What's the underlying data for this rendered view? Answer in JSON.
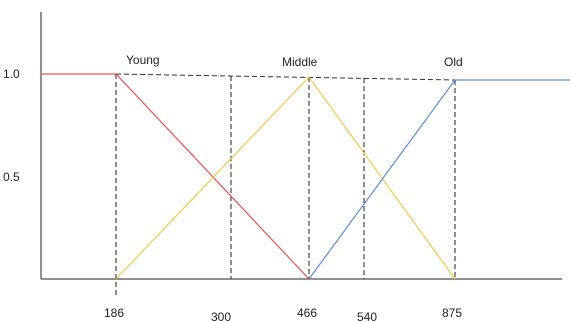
{
  "chart_data": {
    "type": "line",
    "y_ticks": [
      "1.0",
      "0.5"
    ],
    "x_ticks": [
      "186",
      "300",
      "466",
      "540",
      "875"
    ],
    "series": [
      {
        "name": "Young",
        "color": "#f05050",
        "points": [
          [
            0,
            1.0
          ],
          [
            186,
            1.0
          ],
          [
            466,
            0.0
          ]
        ]
      },
      {
        "name": "Middle",
        "color": "#f5c84a",
        "points": [
          [
            186,
            0.0
          ],
          [
            466,
            1.0
          ],
          [
            875,
            0.0
          ]
        ]
      },
      {
        "name": "Old",
        "color": "#5b8fd6",
        "points": [
          [
            466,
            0.0
          ],
          [
            875,
            1.0
          ],
          [
            1150,
            1.0
          ]
        ]
      }
    ],
    "dashed_top_line": {
      "from_x": 186,
      "to_x": 875,
      "y": 1.0
    },
    "dashed_verticals": [
      186,
      300,
      466,
      540,
      875
    ]
  }
}
